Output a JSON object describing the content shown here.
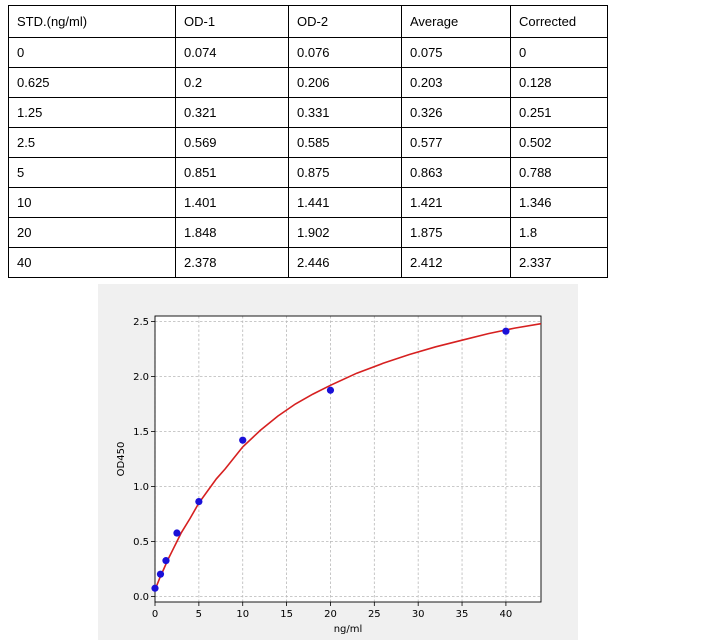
{
  "table": {
    "headers": [
      "STD.(ng/ml)",
      "OD-1",
      "OD-2",
      "Average",
      "Corrected"
    ],
    "rows": [
      [
        "0",
        "0.074",
        "0.076",
        "0.075",
        "0"
      ],
      [
        "0.625",
        "0.2",
        "0.206",
        "0.203",
        "0.128"
      ],
      [
        "1.25",
        "0.321",
        "0.331",
        "0.326",
        "0.251"
      ],
      [
        "2.5",
        "0.569",
        "0.585",
        "0.577",
        "0.502"
      ],
      [
        "5",
        "0.851",
        "0.875",
        "0.863",
        "0.788"
      ],
      [
        "10",
        "1.401",
        "1.441",
        "1.421",
        "1.346"
      ],
      [
        "20",
        "1.848",
        "1.902",
        "1.875",
        "1.8"
      ],
      [
        "40",
        "2.378",
        "2.446",
        "2.412",
        "2.337"
      ]
    ]
  },
  "chart_data": {
    "type": "scatter",
    "title": "",
    "xlabel": "ng/ml",
    "ylabel": "OD450",
    "xlim": [
      0,
      44
    ],
    "ylim": [
      -0.05,
      2.55
    ],
    "xticks": [
      0,
      5,
      10,
      15,
      20,
      25,
      30,
      35,
      40
    ],
    "yticks": [
      0.0,
      0.5,
      1.0,
      1.5,
      2.0,
      2.5
    ],
    "xtick_labels": [
      "0",
      "5",
      "10",
      "15",
      "20",
      "25",
      "30",
      "35",
      "40"
    ],
    "ytick_labels": [
      "0.0",
      "0.5",
      "1.0",
      "1.5",
      "2.0",
      "2.5"
    ],
    "grid": true,
    "points": {
      "x": [
        0,
        0.625,
        1.25,
        2.5,
        5,
        10,
        20,
        40
      ],
      "y": [
        0.075,
        0.203,
        0.326,
        0.577,
        0.863,
        1.421,
        1.875,
        2.412
      ]
    },
    "fit_curve": {
      "x": [
        0,
        0.5,
        1,
        1.5,
        2,
        2.5,
        3,
        4,
        5,
        6,
        7,
        8,
        10,
        12,
        14,
        16,
        18,
        20,
        23,
        26,
        29,
        32,
        35,
        38,
        41,
        44
      ],
      "y": [
        0.06,
        0.16,
        0.25,
        0.34,
        0.42,
        0.5,
        0.58,
        0.71,
        0.85,
        0.96,
        1.07,
        1.16,
        1.36,
        1.51,
        1.64,
        1.75,
        1.84,
        1.92,
        2.03,
        2.12,
        2.2,
        2.27,
        2.33,
        2.39,
        2.44,
        2.48
      ]
    },
    "colors": {
      "points": "#1a10d8",
      "curve": "#d62020",
      "grid": "#b8b8b8",
      "plot_bg": "#ffffff",
      "panel_bg": "#f0f0f0"
    }
  }
}
